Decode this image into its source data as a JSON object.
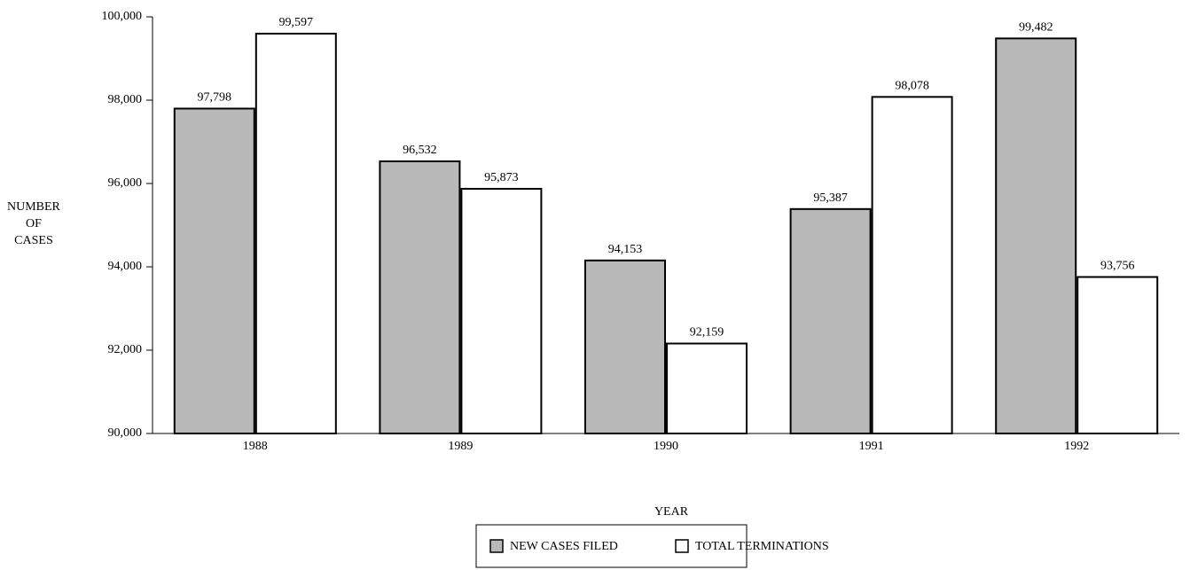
{
  "chart_data": {
    "type": "bar",
    "categories": [
      "1988",
      "1989",
      "1990",
      "1991",
      "1992"
    ],
    "series": [
      {
        "name": "NEW CASES FILED",
        "color": "#b9b9b9",
        "values": [
          97798,
          96532,
          94153,
          95387,
          99482
        ],
        "value_labels": [
          "97,798",
          "96,532",
          "94,153",
          "95,387",
          "99,482"
        ]
      },
      {
        "name": "TOTAL TERMINATIONS",
        "color": "#ffffff",
        "values": [
          99597,
          95873,
          92159,
          98078,
          93756
        ],
        "value_labels": [
          "99,597",
          "95,873",
          "92,159",
          "98,078",
          "93,756"
        ]
      }
    ],
    "xlabel": "YEAR",
    "ylabel": "NUMBER OF CASES",
    "ylim": [
      90000,
      100000
    ],
    "yticks": [
      {
        "value": 90000,
        "label": "90,000"
      },
      {
        "value": 92000,
        "label": "92,000"
      },
      {
        "value": 94000,
        "label": "94,000"
      },
      {
        "value": 96000,
        "label": "96,000"
      },
      {
        "value": 98000,
        "label": "98,000"
      },
      {
        "value": 100000,
        "label": "100,000"
      }
    ],
    "legend": "bottom"
  }
}
